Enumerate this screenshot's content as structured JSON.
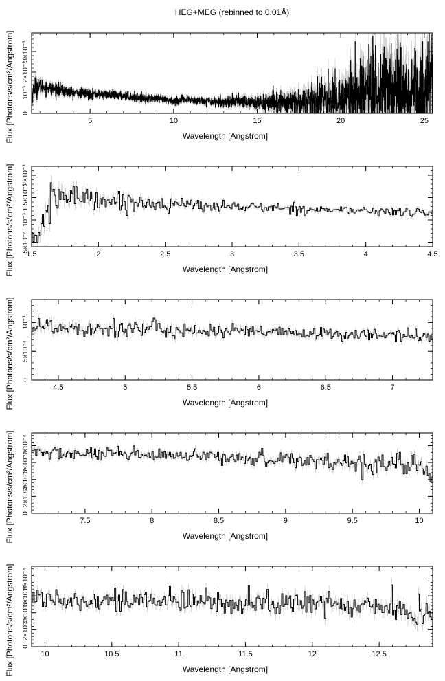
{
  "title": "HEG+MEG (rebinned to 0.01Å)",
  "chart_data": [
    {
      "type": "line",
      "xlabel": "Wavelength [Angstrom]",
      "ylabel": "Flux [Photons/s/cm²/Angstrom]",
      "xlim": [
        1.5,
        25.5
      ],
      "ylim": [
        0,
        0.0039
      ],
      "xticks": [
        5,
        10,
        15,
        20,
        25
      ],
      "xtick_labels": [
        "5",
        "10",
        "15",
        "20",
        "25"
      ],
      "yticks": [
        0,
        0.001,
        0.002,
        0.003
      ],
      "ytick_labels": [
        "0",
        "10⁻³",
        "2×10⁻³",
        "3×10⁻³"
      ],
      "series": [
        {
          "x": [
            1.5,
            1.6,
            1.7,
            1.8,
            2.0,
            2.5,
            3,
            4,
            5,
            6,
            7,
            8,
            9,
            10,
            11,
            12,
            13,
            14,
            15,
            16,
            17,
            18,
            19,
            20,
            21,
            22,
            23,
            24,
            25,
            25.5
          ],
          "y": [
            0.0007,
            0.0011,
            0.00135,
            0.0013,
            0.0013,
            0.00125,
            0.00115,
            0.001,
            0.00095,
            0.0009,
            0.00085,
            0.00075,
            0.0007,
            0.0006,
            0.00065,
            0.0006,
            0.00055,
            0.0006,
            0.0005,
            0.00055,
            0.0005,
            0.0005,
            0.0006,
            0.0007,
            0.0009,
            0.0012,
            0.0013,
            0.001,
            0.0012,
            0.0013
          ],
          "noise": [
            0.0002,
            0.0002,
            0.00025,
            0.00025,
            0.0002,
            0.00015,
            0.00015,
            0.00012,
            0.00012,
            0.0001,
            0.0001,
            0.0001,
            0.0001,
            0.0001,
            0.0001,
            0.0001,
            0.00012,
            0.00015,
            0.0002,
            0.00025,
            0.0003,
            0.0004,
            0.0005,
            0.0006,
            0.0008,
            0.001,
            0.0012,
            0.001,
            0.0011,
            0.0012
          ],
          "step": 0.01
        }
      ]
    },
    {
      "type": "line",
      "xlabel": "Wavelength [Angstrom]",
      "ylabel": "Flux [Photons/s/cm²/Angstrom]",
      "xlim": [
        1.5,
        4.5
      ],
      "ylim": [
        0.0004,
        0.0022
      ],
      "xticks": [
        1.5,
        2,
        2.5,
        3,
        3.5,
        4,
        4.5
      ],
      "xtick_labels": [
        "1.5",
        "2",
        "2.5",
        "3",
        "3.5",
        "4",
        "4.5"
      ],
      "yticks": [
        0.0005,
        0.001,
        0.0015,
        0.002
      ],
      "ytick_labels": [
        "5×10⁻⁴",
        "10⁻³",
        "1.5×10⁻³",
        "2×10⁻³"
      ],
      "series": [
        {
          "x": [
            1.5,
            1.55,
            1.6,
            1.65,
            1.7,
            1.8,
            1.9,
            2.0,
            2.2,
            2.5,
            3.0,
            3.5,
            4.0,
            4.5
          ],
          "y": [
            0.0006,
            0.0007,
            0.001,
            0.0014,
            0.00155,
            0.0015,
            0.00155,
            0.00145,
            0.0014,
            0.00135,
            0.0013,
            0.00125,
            0.0012,
            0.00115
          ],
          "noise": [
            0.00012,
            0.00015,
            0.0002,
            0.0002,
            0.0002,
            0.00015,
            0.00015,
            0.00012,
            0.0001,
            8e-05,
            6e-05,
            5e-05,
            5e-05,
            6e-05
          ],
          "step": 0.01
        }
      ]
    },
    {
      "type": "line",
      "xlabel": "Wavelength [Angstrom]",
      "ylabel": "Flux [Photons/s/cm²/Angstrom]",
      "xlim": [
        4.3,
        7.3
      ],
      "ylim": [
        0,
        0.0014
      ],
      "xticks": [
        4.5,
        5,
        5.5,
        6,
        6.5,
        7
      ],
      "xtick_labels": [
        "4.5",
        "5",
        "5.5",
        "6",
        "6.5",
        "7"
      ],
      "yticks": [
        0,
        0.0005,
        0.001
      ],
      "ytick_labels": [
        "0",
        "5×10⁻⁴",
        "10⁻³"
      ],
      "series": [
        {
          "x": [
            4.3,
            4.5,
            5.0,
            5.5,
            6.0,
            6.5,
            7.0,
            7.3
          ],
          "y": [
            0.00095,
            0.00092,
            0.0009,
            0.00086,
            0.00083,
            0.0008,
            0.00078,
            0.00074
          ],
          "noise": [
            9e-05,
            9e-05,
            8e-05,
            7e-05,
            6e-05,
            5e-05,
            5e-05,
            6e-05
          ],
          "step": 0.01
        }
      ]
    },
    {
      "type": "line",
      "xlabel": "Wavelength [Angstrom]",
      "ylabel": "Flux [Photons/s/cm²/Angstrom]",
      "xlim": [
        7.1,
        10.1
      ],
      "ylim": [
        0,
        0.00095
      ],
      "xticks": [
        7.5,
        8,
        8.5,
        9,
        9.5,
        10
      ],
      "xtick_labels": [
        "7.5",
        "8",
        "8.5",
        "9",
        "9.5",
        "10"
      ],
      "yticks": [
        0,
        0.0002,
        0.0004,
        0.0006,
        0.0008
      ],
      "ytick_labels": [
        "0",
        "2×10⁻⁴",
        "4×10⁻⁴",
        "6×10⁻⁴",
        "8×10⁻⁴"
      ],
      "series": [
        {
          "x": [
            7.1,
            7.5,
            8.0,
            8.5,
            9.0,
            9.5,
            10.0,
            10.1
          ],
          "y": [
            0.00072,
            0.0007,
            0.00068,
            0.00066,
            0.00064,
            0.0006,
            0.00058,
            0.00045
          ],
          "noise": [
            4e-05,
            4e-05,
            4e-05,
            4e-05,
            5e-05,
            6e-05,
            6e-05,
            8e-05
          ],
          "step": 0.01
        }
      ]
    },
    {
      "type": "line",
      "xlabel": "Wavelength [Angstrom]",
      "ylabel": "Flux [Photons/s/cm²/Angstrom]",
      "xlim": [
        9.9,
        12.9
      ],
      "ylim": [
        0,
        0.00095
      ],
      "xticks": [
        10,
        10.5,
        11,
        11.5,
        12,
        12.5
      ],
      "xtick_labels": [
        "10",
        "10.5",
        "11",
        "11.5",
        "12",
        "12.5"
      ],
      "yticks": [
        0,
        0.0002,
        0.0004,
        0.0006,
        0.0008
      ],
      "ytick_labels": [
        "0",
        "2×10⁻⁴",
        "4×10⁻⁴",
        "6×10⁻⁴",
        "8×10⁻⁴"
      ],
      "series": [
        {
          "x": [
            9.9,
            10.5,
            11.0,
            11.5,
            12.0,
            12.5,
            12.9
          ],
          "y": [
            0.00058,
            0.00055,
            0.00053,
            0.00052,
            0.0005,
            0.00049,
            0.00035
          ],
          "noise": [
            6e-05,
            6e-05,
            7e-05,
            7e-05,
            8e-05,
            8e-05,
            0.0001
          ],
          "step": 0.01
        }
      ]
    }
  ]
}
